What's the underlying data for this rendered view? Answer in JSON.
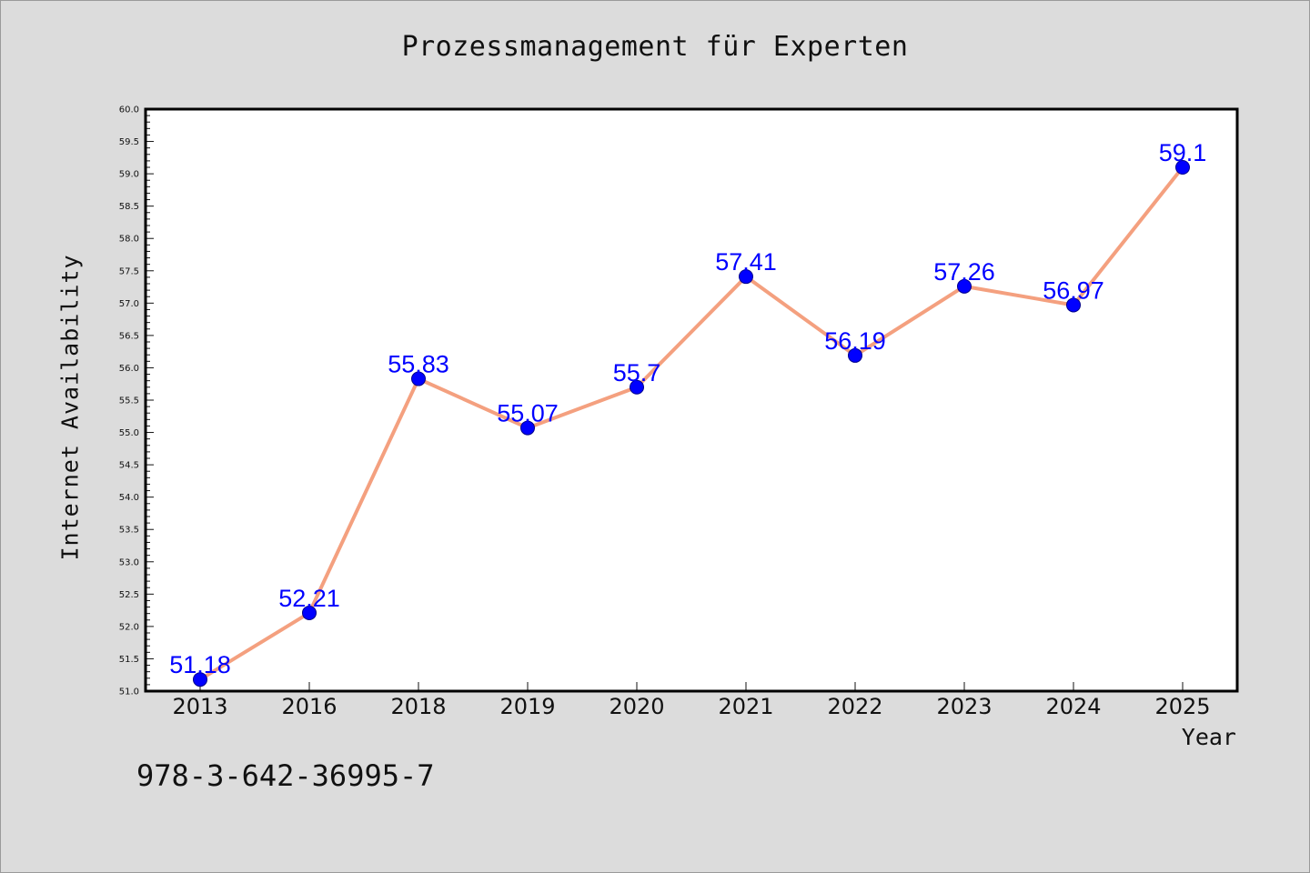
{
  "colors": {
    "background": "#dcdcdc",
    "plot_background": "#ffffff",
    "line": "#f4a07f",
    "marker": "#0000ff",
    "data_label": "#0000ff",
    "text": "#111111"
  },
  "footer_text": "978-3-642-36995-7",
  "chart_data": {
    "type": "line",
    "title": "Prozessmanagement für Experten",
    "xlabel": "Year",
    "ylabel": "Internet Availability",
    "categories": [
      "2013",
      "2016",
      "2018",
      "2019",
      "2020",
      "2021",
      "2022",
      "2023",
      "2024",
      "2025"
    ],
    "series": [
      {
        "values": [
          51.18,
          52.21,
          55.83,
          55.07,
          55.7,
          57.41,
          56.19,
          57.26,
          56.97,
          59.1
        ]
      }
    ],
    "data_labels": [
      "51.18",
      "52.21",
      "55.83",
      "55.07",
      "55.7",
      "57.41",
      "56.19",
      "57.26",
      "56.97",
      "59.1"
    ],
    "ylim": [
      51.0,
      60.0
    ],
    "yticks": [
      "51.0",
      "51.5",
      "52.0",
      "52.5",
      "53.0",
      "53.5",
      "54.0",
      "54.5",
      "55.0",
      "55.5",
      "56.0",
      "56.5",
      "57.0",
      "57.5",
      "58.0",
      "58.5",
      "59.0",
      "59.5",
      "60.0"
    ],
    "grid": false,
    "legend": "none",
    "marker": "circle"
  }
}
